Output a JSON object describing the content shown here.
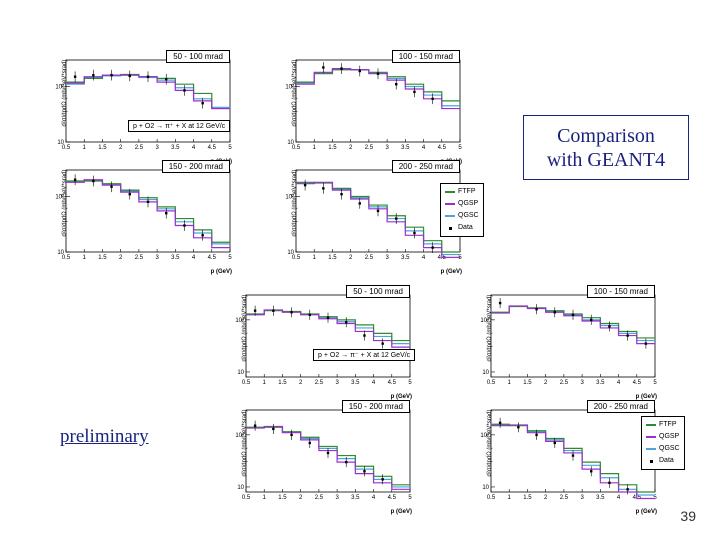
{
  "overlay_title": "Comparison\nwith GEANT4",
  "preliminary_label": "preliminary",
  "page_number": "39",
  "reaction_label": "p + O2 → π⁺ + X at 12 GeV/c",
  "reaction_label_bottom": "p + O2 → π⁻ + X at 12 GeV/c",
  "xlabel": "p (GeV)",
  "ylabel": "d²σ/dpdΩ (mb/GeV*srad)",
  "colors": {
    "ftfp": "#2e8b2e",
    "qgsp": "#9b30d0",
    "qgsc": "#4fa3e0",
    "data": "#000000"
  },
  "legend": {
    "ftfp": "FTFP",
    "qgsp": "QGSP",
    "qgsc": "QGSC",
    "data": "Data"
  },
  "chart_data": [
    {
      "type": "line",
      "group": "top",
      "title": "50 - 100 mrad",
      "xlim": [
        0.5,
        5
      ],
      "ylim_log": [
        10,
        300
      ],
      "x_ticks": [
        "0.5",
        "1",
        "1.5",
        "2",
        "2.5",
        "3",
        "3.5",
        "4",
        "4.5",
        "5"
      ],
      "y_ticks": [
        "10",
        "10²"
      ],
      "data": [
        [
          0.75,
          150
        ],
        [
          1.25,
          160
        ],
        [
          1.75,
          160
        ],
        [
          2.25,
          155
        ],
        [
          2.75,
          150
        ],
        [
          3.25,
          135
        ],
        [
          3.75,
          85
        ],
        [
          4.25,
          50
        ]
      ],
      "ftfp": [
        [
          0.5,
          120
        ],
        [
          1,
          140
        ],
        [
          1.5,
          160
        ],
        [
          2,
          165
        ],
        [
          2.5,
          150
        ],
        [
          3,
          140
        ],
        [
          3.5,
          110
        ],
        [
          4,
          75
        ],
        [
          4.5,
          40
        ]
      ],
      "qgsp": [
        [
          0.5,
          115
        ],
        [
          1,
          150
        ],
        [
          1.5,
          160
        ],
        [
          2,
          160
        ],
        [
          2.5,
          150
        ],
        [
          3,
          120
        ],
        [
          3.5,
          85
        ],
        [
          4,
          55
        ],
        [
          4.5,
          40
        ]
      ],
      "qgsc": [
        [
          0.5,
          110
        ],
        [
          1,
          145
        ],
        [
          1.5,
          155
        ],
        [
          2,
          160
        ],
        [
          2.5,
          145
        ],
        [
          3,
          130
        ],
        [
          3.5,
          95
        ],
        [
          4,
          60
        ],
        [
          4.5,
          42
        ]
      ]
    },
    {
      "type": "line",
      "group": "top",
      "title": "100 - 150 mrad",
      "xlim": [
        0.5,
        5
      ],
      "ylim_log": [
        10,
        300
      ],
      "x_ticks": [
        "0.5",
        "1",
        "1.5",
        "2",
        "2.5",
        "3",
        "3.5",
        "4",
        "4.5",
        "5"
      ],
      "y_ticks": [
        "10",
        "10²"
      ],
      "data": [
        [
          1.25,
          220
        ],
        [
          1.75,
          210
        ],
        [
          2.25,
          190
        ],
        [
          2.75,
          170
        ],
        [
          3.25,
          110
        ],
        [
          3.75,
          80
        ],
        [
          4.25,
          60
        ]
      ],
      "ftfp": [
        [
          0.5,
          120
        ],
        [
          1,
          170
        ],
        [
          1.5,
          200
        ],
        [
          2,
          200
        ],
        [
          2.5,
          180
        ],
        [
          3,
          150
        ],
        [
          3.5,
          110
        ],
        [
          4,
          80
        ],
        [
          4.5,
          55
        ]
      ],
      "qgsp": [
        [
          0.5,
          110
        ],
        [
          1,
          180
        ],
        [
          1.5,
          210
        ],
        [
          2,
          200
        ],
        [
          2.5,
          170
        ],
        [
          3,
          130
        ],
        [
          3.5,
          90
        ],
        [
          4,
          60
        ],
        [
          4.5,
          40
        ]
      ],
      "qgsc": [
        [
          0.5,
          115
        ],
        [
          1,
          175
        ],
        [
          1.5,
          205
        ],
        [
          2,
          200
        ],
        [
          2.5,
          175
        ],
        [
          3,
          140
        ],
        [
          3.5,
          100
        ],
        [
          4,
          70
        ],
        [
          4.5,
          45
        ]
      ]
    },
    {
      "type": "line",
      "group": "top",
      "title": "150 - 200 mrad",
      "xlim": [
        0.5,
        5
      ],
      "ylim_log": [
        10,
        300
      ],
      "x_ticks": [
        "0.5",
        "1",
        "1.5",
        "2",
        "2.5",
        "3",
        "3.5",
        "4",
        "4.5",
        "5"
      ],
      "y_ticks": [
        "10",
        "10²"
      ],
      "data": [
        [
          0.75,
          200
        ],
        [
          1.25,
          190
        ],
        [
          1.75,
          150
        ],
        [
          2.25,
          110
        ],
        [
          2.75,
          80
        ],
        [
          3.25,
          50
        ],
        [
          3.75,
          30
        ],
        [
          4.25,
          20
        ]
      ],
      "ftfp": [
        [
          0.5,
          190
        ],
        [
          1,
          190
        ],
        [
          1.5,
          170
        ],
        [
          2,
          130
        ],
        [
          2.5,
          95
        ],
        [
          3,
          65
        ],
        [
          3.5,
          40
        ],
        [
          4,
          25
        ],
        [
          4.5,
          15
        ]
      ],
      "qgsp": [
        [
          0.5,
          180
        ],
        [
          1,
          200
        ],
        [
          1.5,
          160
        ],
        [
          2,
          120
        ],
        [
          2.5,
          80
        ],
        [
          3,
          55
        ],
        [
          3.5,
          30
        ],
        [
          4,
          18
        ],
        [
          4.5,
          12
        ]
      ],
      "qgsc": [
        [
          0.5,
          185
        ],
        [
          1,
          195
        ],
        [
          1.5,
          165
        ],
        [
          2,
          125
        ],
        [
          2.5,
          88
        ],
        [
          3,
          60
        ],
        [
          3.5,
          35
        ],
        [
          4,
          22
        ],
        [
          4.5,
          14
        ]
      ]
    },
    {
      "type": "line",
      "group": "top",
      "title": "200 - 250 mrad",
      "xlim": [
        0.5,
        5
      ],
      "ylim_log": [
        10,
        300
      ],
      "x_ticks": [
        "0.5",
        "1",
        "1.5",
        "2",
        "2.5",
        "3",
        "3.5",
        "4",
        "4.5",
        "5"
      ],
      "y_ticks": [
        "10",
        "10²"
      ],
      "data": [
        [
          0.75,
          160
        ],
        [
          1.25,
          140
        ],
        [
          1.75,
          110
        ],
        [
          2.25,
          75
        ],
        [
          2.75,
          55
        ],
        [
          3.25,
          40
        ],
        [
          3.75,
          22
        ],
        [
          4.25,
          12
        ]
      ],
      "ftfp": [
        [
          0.5,
          180
        ],
        [
          1,
          175
        ],
        [
          1.5,
          140
        ],
        [
          2,
          100
        ],
        [
          2.5,
          70
        ],
        [
          3,
          45
        ],
        [
          3.5,
          28
        ],
        [
          4,
          16
        ],
        [
          4.5,
          10
        ]
      ],
      "qgsp": [
        [
          0.5,
          170
        ],
        [
          1,
          180
        ],
        [
          1.5,
          130
        ],
        [
          2,
          90
        ],
        [
          2.5,
          60
        ],
        [
          3,
          35
        ],
        [
          3.5,
          20
        ],
        [
          4,
          12
        ],
        [
          4.5,
          8
        ]
      ],
      "qgsc": [
        [
          0.5,
          175
        ],
        [
          1,
          178
        ],
        [
          1.5,
          135
        ],
        [
          2,
          95
        ],
        [
          2.5,
          65
        ],
        [
          3,
          40
        ],
        [
          3.5,
          24
        ],
        [
          4,
          14
        ],
        [
          4.5,
          9
        ]
      ]
    },
    {
      "type": "line",
      "group": "bottom",
      "title": "50 - 100 mrad",
      "xlim": [
        0.5,
        5
      ],
      "ylim_log": [
        8,
        300
      ],
      "x_ticks": [
        "0.5",
        "1",
        "1.5",
        "2",
        "2.5",
        "3",
        "3.5",
        "4",
        "4.5",
        "5"
      ],
      "y_ticks": [
        "10",
        "10²"
      ],
      "data": [
        [
          0.75,
          150
        ],
        [
          1.25,
          150
        ],
        [
          1.75,
          140
        ],
        [
          2.25,
          125
        ],
        [
          2.75,
          110
        ],
        [
          3.25,
          90
        ],
        [
          3.75,
          50
        ],
        [
          4.25,
          35
        ]
      ],
      "ftfp": [
        [
          0.5,
          130
        ],
        [
          1,
          150
        ],
        [
          1.5,
          145
        ],
        [
          2,
          130
        ],
        [
          2.5,
          115
        ],
        [
          3,
          100
        ],
        [
          3.5,
          80
        ],
        [
          4,
          55
        ],
        [
          4.5,
          40
        ]
      ],
      "qgsp": [
        [
          0.5,
          125
        ],
        [
          1,
          155
        ],
        [
          1.5,
          140
        ],
        [
          2,
          125
        ],
        [
          2.5,
          105
        ],
        [
          3,
          85
        ],
        [
          3.5,
          60
        ],
        [
          4,
          40
        ],
        [
          4.5,
          30
        ]
      ],
      "qgsc": [
        [
          0.5,
          128
        ],
        [
          1,
          152
        ],
        [
          1.5,
          142
        ],
        [
          2,
          128
        ],
        [
          2.5,
          110
        ],
        [
          3,
          92
        ],
        [
          3.5,
          70
        ],
        [
          4,
          48
        ],
        [
          4.5,
          35
        ]
      ]
    },
    {
      "type": "line",
      "group": "bottom",
      "title": "100 - 150 mrad",
      "xlim": [
        0.5,
        5
      ],
      "ylim_log": [
        8,
        300
      ],
      "x_ticks": [
        "0.5",
        "1",
        "1.5",
        "2",
        "2.5",
        "3",
        "3.5",
        "4",
        "4.5",
        "5"
      ],
      "y_ticks": [
        "10",
        "10²"
      ],
      "data": [
        [
          0.75,
          210
        ],
        [
          1.75,
          160
        ],
        [
          2.25,
          140
        ],
        [
          2.75,
          125
        ],
        [
          3.25,
          100
        ],
        [
          3.75,
          75
        ],
        [
          4.25,
          50
        ],
        [
          4.75,
          35
        ]
      ],
      "ftfp": [
        [
          0.5,
          140
        ],
        [
          1,
          180
        ],
        [
          1.5,
          170
        ],
        [
          2,
          150
        ],
        [
          2.5,
          130
        ],
        [
          3,
          110
        ],
        [
          3.5,
          85
        ],
        [
          4,
          60
        ],
        [
          4.5,
          45
        ]
      ],
      "qgsp": [
        [
          0.5,
          135
        ],
        [
          1,
          185
        ],
        [
          1.5,
          165
        ],
        [
          2,
          140
        ],
        [
          2.5,
          120
        ],
        [
          3,
          95
        ],
        [
          3.5,
          70
        ],
        [
          4,
          50
        ],
        [
          4.5,
          35
        ]
      ],
      "qgsc": [
        [
          0.5,
          138
        ],
        [
          1,
          182
        ],
        [
          1.5,
          168
        ],
        [
          2,
          145
        ],
        [
          2.5,
          125
        ],
        [
          3,
          100
        ],
        [
          3.5,
          78
        ],
        [
          4,
          55
        ],
        [
          4.5,
          40
        ]
      ]
    },
    {
      "type": "line",
      "group": "bottom",
      "title": "150 - 200 mrad",
      "xlim": [
        0.5,
        5
      ],
      "ylim_log": [
        8,
        300
      ],
      "x_ticks": [
        "0.5",
        "1",
        "1.5",
        "2",
        "2.5",
        "3",
        "3.5",
        "4",
        "4.5",
        "5"
      ],
      "y_ticks": [
        "10",
        "10²"
      ],
      "data": [
        [
          0.75,
          150
        ],
        [
          1.25,
          130
        ],
        [
          1.75,
          100
        ],
        [
          2.25,
          70
        ],
        [
          2.75,
          45
        ],
        [
          3.25,
          30
        ],
        [
          3.75,
          20
        ],
        [
          4.25,
          14
        ]
      ],
      "ftfp": [
        [
          0.5,
          140
        ],
        [
          1,
          140
        ],
        [
          1.5,
          115
        ],
        [
          2,
          90
        ],
        [
          2.5,
          60
        ],
        [
          3,
          40
        ],
        [
          3.5,
          25
        ],
        [
          4,
          16
        ],
        [
          4.5,
          11
        ]
      ],
      "qgsp": [
        [
          0.5,
          135
        ],
        [
          1,
          145
        ],
        [
          1.5,
          110
        ],
        [
          2,
          80
        ],
        [
          2.5,
          50
        ],
        [
          3,
          30
        ],
        [
          3.5,
          18
        ],
        [
          4,
          12
        ],
        [
          4.5,
          9
        ]
      ],
      "qgsc": [
        [
          0.5,
          138
        ],
        [
          1,
          142
        ],
        [
          1.5,
          112
        ],
        [
          2,
          85
        ],
        [
          2.5,
          55
        ],
        [
          3,
          35
        ],
        [
          3.5,
          22
        ],
        [
          4,
          14
        ],
        [
          4.5,
          10
        ]
      ]
    },
    {
      "type": "line",
      "group": "bottom",
      "title": "200 - 250 mrad",
      "xlim": [
        0.5,
        5
      ],
      "ylim_log": [
        8,
        300
      ],
      "x_ticks": [
        "0.5",
        "1",
        "1.5",
        "2",
        "2.5",
        "3",
        "3.5",
        "4",
        "4.5",
        "5"
      ],
      "y_ticks": [
        "10",
        "10²"
      ],
      "data": [
        [
          0.75,
          170
        ],
        [
          1.25,
          140
        ],
        [
          1.75,
          100
        ],
        [
          2.25,
          70
        ],
        [
          2.75,
          40
        ],
        [
          3.25,
          20
        ],
        [
          3.75,
          12
        ],
        [
          4.25,
          9
        ]
      ],
      "ftfp": [
        [
          0.5,
          160
        ],
        [
          1,
          150
        ],
        [
          1.5,
          120
        ],
        [
          2,
          85
        ],
        [
          2.5,
          55
        ],
        [
          3,
          30
        ],
        [
          3.5,
          18
        ],
        [
          4,
          11
        ],
        [
          4.5,
          8
        ]
      ],
      "qgsp": [
        [
          0.5,
          150
        ],
        [
          1,
          155
        ],
        [
          1.5,
          110
        ],
        [
          2,
          75
        ],
        [
          2.5,
          45
        ],
        [
          3,
          22
        ],
        [
          3.5,
          12
        ],
        [
          4,
          8
        ],
        [
          4.5,
          6
        ]
      ],
      "qgsc": [
        [
          0.5,
          155
        ],
        [
          1,
          152
        ],
        [
          1.5,
          115
        ],
        [
          2,
          80
        ],
        [
          2.5,
          50
        ],
        [
          3,
          26
        ],
        [
          3.5,
          15
        ],
        [
          4,
          9
        ],
        [
          4.5,
          7
        ]
      ]
    }
  ]
}
